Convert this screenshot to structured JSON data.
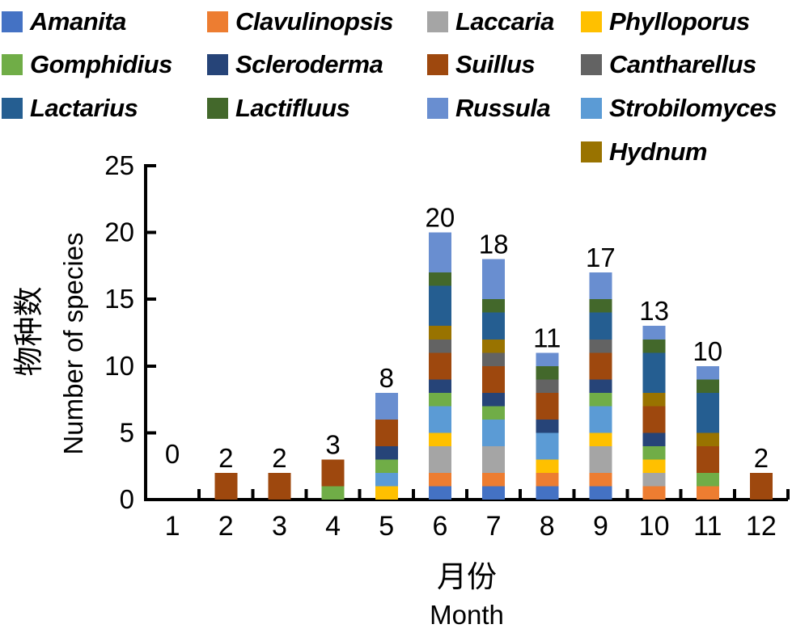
{
  "figure": {
    "background": "#ffffff",
    "text_color": "#000000",
    "axis_color": "#000000"
  },
  "legend": {
    "position": "top",
    "rows": [
      [
        "Amanita",
        "Clavulinopsis",
        "Laccaria",
        "Phylloporus"
      ],
      [
        "Gomphidius",
        "Scleroderma",
        "Suillus",
        "Cantharellus"
      ],
      [
        "Lactarius",
        "Lactifluus",
        "Russula",
        "Strobilomyces"
      ],
      [
        null,
        null,
        null,
        "Hydnum"
      ]
    ]
  },
  "axes": {
    "y": {
      "title_zh": "物种数",
      "title_en": "Number of species",
      "ticks": [
        0,
        5,
        10,
        15,
        20,
        25
      ],
      "range": [
        0,
        25
      ]
    },
    "x": {
      "title_zh": "月份",
      "title_en": "Month",
      "tick_labels": [
        "1",
        "2",
        "3",
        "4",
        "5",
        "6",
        "7",
        "8",
        "9",
        "10",
        "11",
        "12"
      ]
    }
  },
  "chart_data": {
    "type": "bar",
    "stacked": true,
    "title": "",
    "xlabel": "月份 Month",
    "ylabel": "物种数 Number of species",
    "ylim": [
      0,
      25
    ],
    "grid": false,
    "legend_position": "top",
    "categories": [
      "1",
      "2",
      "3",
      "4",
      "5",
      "6",
      "7",
      "8",
      "9",
      "10",
      "11",
      "12"
    ],
    "series": [
      {
        "name": "Amanita",
        "color": "#4472C4",
        "values": [
          0,
          0,
          0,
          0,
          0,
          1,
          1,
          1,
          1,
          0,
          0,
          0
        ]
      },
      {
        "name": "Clavulinopsis",
        "color": "#ED7D31",
        "values": [
          0,
          0,
          0,
          0,
          0,
          1,
          1,
          1,
          1,
          1,
          1,
          0
        ]
      },
      {
        "name": "Laccaria",
        "color": "#A5A5A5",
        "values": [
          0,
          0,
          0,
          0,
          0,
          2,
          2,
          0,
          2,
          1,
          0,
          0
        ]
      },
      {
        "name": "Phylloporus",
        "color": "#FFC000",
        "values": [
          0,
          0,
          0,
          0,
          1,
          1,
          0,
          1,
          1,
          1,
          0,
          0
        ]
      },
      {
        "name": "Strobilomyces",
        "color": "#5B9BD5",
        "values": [
          0,
          0,
          0,
          0,
          1,
          2,
          2,
          2,
          2,
          0,
          0,
          0
        ]
      },
      {
        "name": "Gomphidius",
        "color": "#70AD47",
        "values": [
          0,
          0,
          0,
          1,
          1,
          1,
          1,
          0,
          1,
          1,
          1,
          0
        ]
      },
      {
        "name": "Scleroderma",
        "color": "#264478",
        "values": [
          0,
          0,
          0,
          0,
          1,
          1,
          1,
          1,
          1,
          1,
          0,
          0
        ]
      },
      {
        "name": "Suillus",
        "color": "#9E480E",
        "values": [
          0,
          2,
          2,
          2,
          2,
          2,
          2,
          2,
          2,
          2,
          2,
          2
        ]
      },
      {
        "name": "Cantharellus",
        "color": "#636363",
        "values": [
          0,
          0,
          0,
          0,
          0,
          1,
          1,
          1,
          1,
          0,
          0,
          0
        ]
      },
      {
        "name": "Hydnum",
        "color": "#997300",
        "values": [
          0,
          0,
          0,
          0,
          0,
          1,
          1,
          0,
          0,
          1,
          1,
          0
        ]
      },
      {
        "name": "Lactarius",
        "color": "#255E91",
        "values": [
          0,
          0,
          0,
          0,
          0,
          3,
          2,
          0,
          2,
          3,
          3,
          0
        ]
      },
      {
        "name": "Lactifluus",
        "color": "#43682B",
        "values": [
          0,
          0,
          0,
          0,
          0,
          1,
          1,
          1,
          1,
          1,
          1,
          0
        ]
      },
      {
        "name": "Russula",
        "color": "#698ED0",
        "values": [
          0,
          0,
          0,
          0,
          2,
          3,
          3,
          1,
          2,
          1,
          1,
          0
        ]
      }
    ],
    "totals": [
      0,
      2,
      2,
      3,
      8,
      20,
      18,
      11,
      17,
      13,
      10,
      2
    ]
  }
}
